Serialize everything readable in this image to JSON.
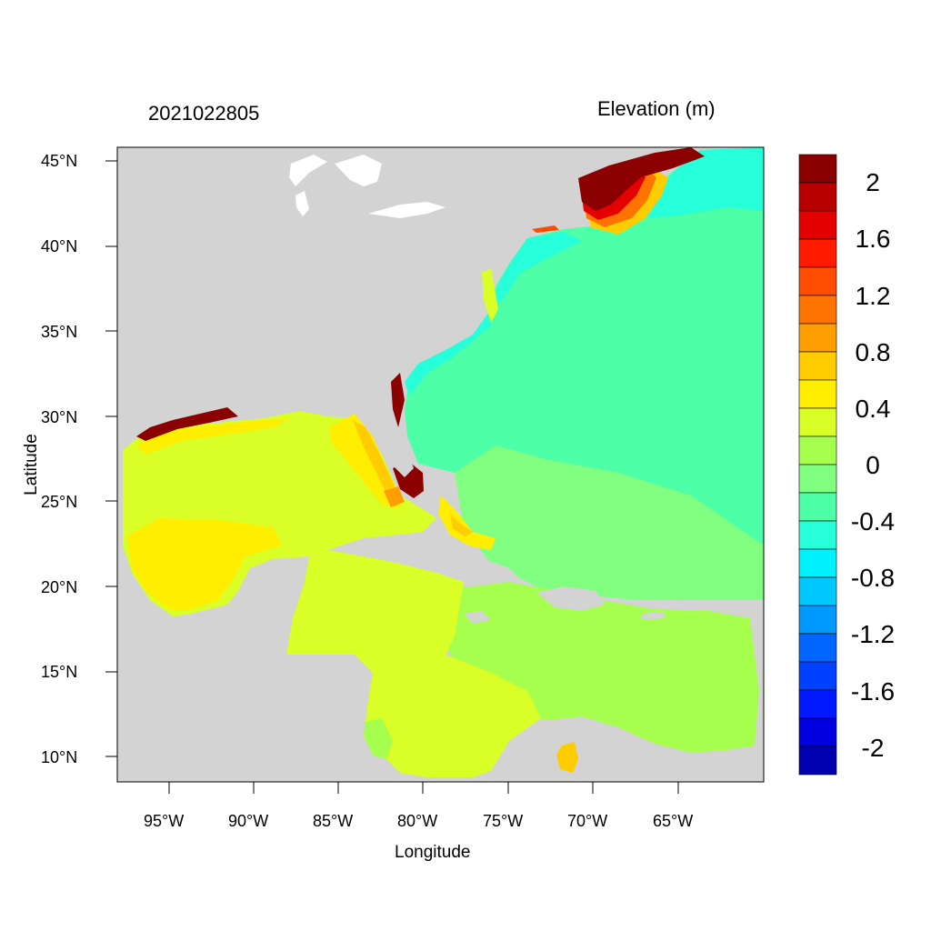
{
  "header": {
    "date_stamp": "2021022805",
    "variable": "Elevation (m)"
  },
  "axes": {
    "xlabel": "Longitude",
    "ylabel": "Latitude",
    "xticks": [
      "95°W",
      "90°W",
      "85°W",
      "80°W",
      "75°W",
      "70°W",
      "65°W"
    ],
    "yticks": [
      "45°N",
      "40°N",
      "35°N",
      "30°N",
      "25°N",
      "20°N",
      "15°N",
      "10°N"
    ]
  },
  "colorbar": {
    "labels": [
      "2",
      "1.6",
      "1.2",
      "0.8",
      "0.4",
      "0",
      "-0.4",
      "-0.8",
      "-1.2",
      "-1.6",
      "-2"
    ],
    "colors_top_to_bottom": [
      "#8b0000",
      "#b80000",
      "#e50000",
      "#ff1a00",
      "#ff4d00",
      "#ff7300",
      "#ff9e00",
      "#ffcc00",
      "#ffee00",
      "#d9ff26",
      "#a6ff4d",
      "#80ff80",
      "#4dffa6",
      "#26ffd9",
      "#00f2ff",
      "#00c8ff",
      "#0099ff",
      "#0066ff",
      "#0040ff",
      "#0019ff",
      "#0000e0",
      "#0000b0"
    ]
  },
  "colors": {
    "land": "#d3d3d3",
    "ocean_neg": "#4dffa6",
    "ocean_neg_deep": "#26ffd9",
    "caribbean": "#a6ff4d",
    "gulf": "#d9ff26",
    "gulf_high": "#ffee00",
    "surge_peak": "#8b0000"
  }
}
